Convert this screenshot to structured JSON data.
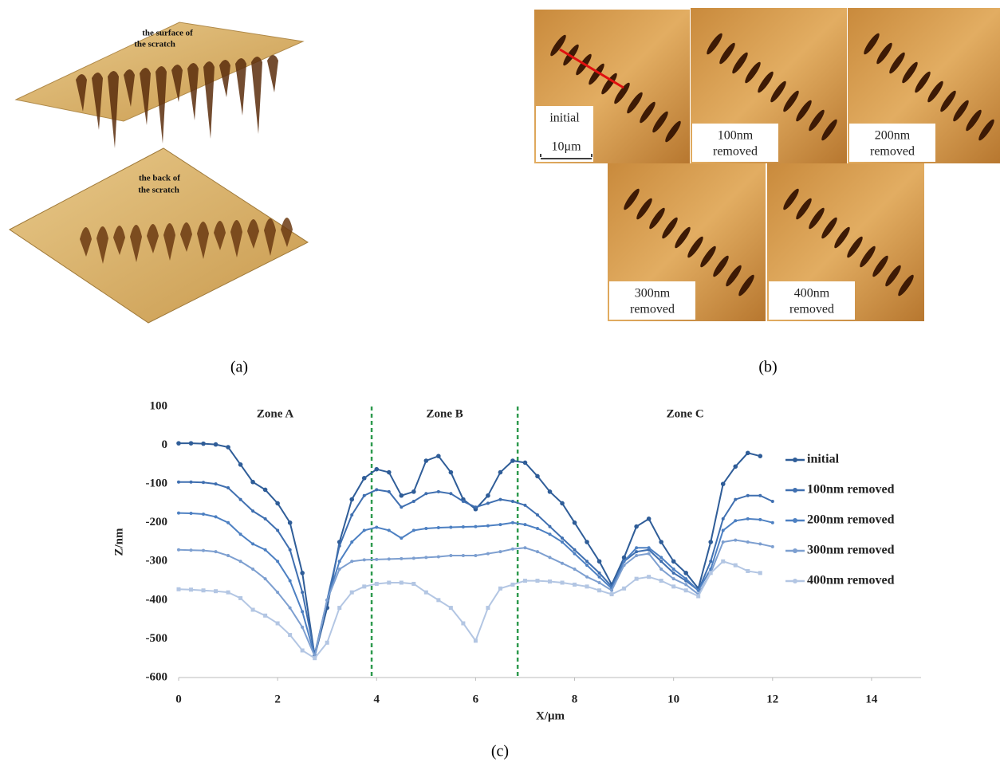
{
  "panel_a": {
    "label": "(a)",
    "annotations": [
      [
        "the surface of",
        "the scratch"
      ],
      [
        "the back of",
        "the scratch"
      ]
    ]
  },
  "panel_b": {
    "label": "(b)",
    "images": [
      {
        "caption": [
          "initial"
        ],
        "scale": "10μm"
      },
      {
        "caption": [
          "100nm",
          "removed"
        ]
      },
      {
        "caption": [
          "200nm",
          "removed"
        ]
      },
      {
        "caption": [
          "300nm",
          "removed"
        ]
      },
      {
        "caption": [
          "400nm",
          "removed"
        ]
      }
    ]
  },
  "chart_data": {
    "type": "line",
    "panel_label": "(c)",
    "x_label": "X/μm",
    "y_label": "Z/nm",
    "xlim": [
      0,
      15
    ],
    "xticks": [
      0,
      2,
      4,
      6,
      8,
      10,
      12,
      14
    ],
    "ylim": [
      -600,
      100
    ],
    "yticks": [
      100,
      0,
      -100,
      -200,
      -300,
      -400,
      -500,
      -600
    ],
    "legend": "right",
    "zones": [
      "Zone A",
      "Zone B",
      "Zone C"
    ],
    "dividers": [
      3.9,
      6.85
    ],
    "divider_color": "#2e9a4e",
    "x": [
      0,
      0.25,
      0.5,
      0.75,
      1,
      1.25,
      1.5,
      1.75,
      2,
      2.25,
      2.5,
      2.75,
      3,
      3.25,
      3.5,
      3.75,
      4,
      4.25,
      4.5,
      4.75,
      5,
      5.25,
      5.5,
      5.75,
      6,
      6.25,
      6.5,
      6.75,
      7,
      7.25,
      7.5,
      7.75,
      8,
      8.25,
      8.5,
      8.75,
      9,
      9.25,
      9.5,
      9.75,
      10,
      10.25,
      10.5,
      10.75,
      11,
      11.25,
      11.5,
      11.75,
      12
    ],
    "series": [
      {
        "name": "initial",
        "color": "#2f5d98",
        "values": [
          5,
          5,
          4,
          2,
          -5,
          -50,
          -95,
          -115,
          -150,
          -200,
          -330,
          -545,
          -420,
          -250,
          -140,
          -85,
          -62,
          -70,
          -130,
          -120,
          -40,
          -28,
          -70,
          -140,
          -165,
          -130,
          -70,
          -40,
          -45,
          -80,
          -120,
          -150,
          -200,
          -250,
          -300,
          -360,
          -290,
          -210,
          -190,
          -250,
          -300,
          -330,
          -370,
          -250,
          -100,
          -55,
          -20,
          -28,
          null
        ]
      },
      {
        "name": "100nm removed",
        "color": "#3f6fb0",
        "values": [
          -95,
          -95,
          -96,
          -100,
          -110,
          -140,
          -170,
          -190,
          -220,
          -270,
          -380,
          -540,
          -400,
          -260,
          -180,
          -130,
          -115,
          -120,
          -160,
          -145,
          -125,
          -120,
          -125,
          -145,
          -160,
          -150,
          -140,
          -145,
          -155,
          -180,
          -210,
          -240,
          -270,
          -300,
          -330,
          -365,
          -300,
          -275,
          -270,
          -300,
          -330,
          -350,
          -375,
          -300,
          -190,
          -140,
          -130,
          -130,
          -145
        ]
      },
      {
        "name": "200nm removed",
        "color": "#4d80c2",
        "values": [
          -175,
          -176,
          -178,
          -185,
          -200,
          -230,
          -255,
          -270,
          -300,
          -350,
          -430,
          -545,
          -400,
          -300,
          -250,
          -220,
          -212,
          -220,
          -240,
          -220,
          -215,
          -213,
          -212,
          -211,
          -210,
          -208,
          -205,
          -200,
          -205,
          -215,
          -230,
          -250,
          -280,
          -310,
          -340,
          -370,
          -300,
          -265,
          -265,
          -290,
          -320,
          -345,
          -375,
          -320,
          -220,
          -195,
          -190,
          -192,
          -200
        ]
      },
      {
        "name": "300nm removed",
        "color": "#7d9fd0",
        "values": [
          -270,
          -271,
          -272,
          -275,
          -285,
          -300,
          -320,
          -345,
          -380,
          -420,
          -470,
          -545,
          -400,
          -320,
          -300,
          -296,
          -295,
          -294,
          -293,
          -292,
          -290,
          -288,
          -285,
          -285,
          -285,
          -280,
          -275,
          -268,
          -265,
          -275,
          -290,
          -305,
          -320,
          -340,
          -355,
          -375,
          -310,
          -285,
          -280,
          -320,
          -345,
          -360,
          -385,
          -330,
          -250,
          -245,
          -250,
          -255,
          -262
        ]
      },
      {
        "name": "400nm removed",
        "color": "#b3c6e3",
        "values": [
          -372,
          -373,
          -375,
          -377,
          -380,
          -395,
          -425,
          -440,
          -460,
          -490,
          -530,
          -550,
          -510,
          -420,
          -380,
          -365,
          -358,
          -355,
          -355,
          -358,
          -380,
          -400,
          -420,
          -460,
          -505,
          -420,
          -370,
          -360,
          -350,
          -350,
          -352,
          -355,
          -360,
          -365,
          -375,
          -385,
          -370,
          -345,
          -340,
          -350,
          -365,
          -375,
          -390,
          -330,
          -300,
          -310,
          -325,
          -330,
          null
        ]
      }
    ]
  }
}
